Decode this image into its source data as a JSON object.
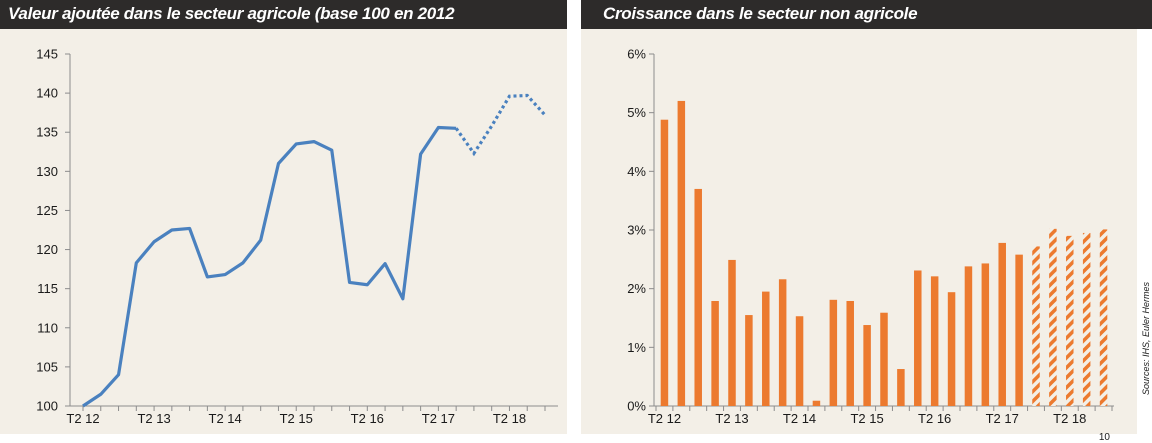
{
  "header": {
    "left_title": "Valeur ajoutée dans le secteur agricole (base 100 en 2012",
    "right_title": "Croissance dans le secteur non agricole"
  },
  "source_note": "Sources: IHS, Euler Hermes",
  "page_number": "10",
  "chart_data": [
    {
      "type": "line",
      "title": "Valeur ajoutée dans le secteur agricole (base 100 en 2012",
      "xlabel": "",
      "ylabel": "",
      "ylim": [
        100,
        145
      ],
      "yticks": [
        100,
        105,
        110,
        115,
        120,
        125,
        130,
        135,
        140,
        145
      ],
      "tick_labels": [
        "T2 12",
        "T2 13",
        "T2 14",
        "T2 15",
        "T2 16",
        "T2 17",
        "T2 18"
      ],
      "tick_positions": [
        0,
        4,
        8,
        12,
        16,
        20,
        24
      ],
      "grid": false,
      "color": "#4a81bf",
      "values": [
        100,
        101.5,
        104,
        118.3,
        121,
        122.5,
        122.7,
        116.5,
        116.8,
        118.3,
        121.2,
        131,
        133.5,
        133.8,
        132.7,
        115.8,
        115.5,
        118.2,
        113.7,
        132.2,
        135.6,
        135.5,
        132.3,
        135.8,
        139.6,
        139.7,
        137.2
      ],
      "forecast_from_index": 21
    },
    {
      "type": "bar",
      "title": "Croissance dans le secteur non agricole",
      "xlabel": "",
      "ylabel": "",
      "ylim": [
        0,
        6
      ],
      "yticks": [
        0,
        1,
        2,
        3,
        4,
        5,
        6
      ],
      "ytick_labels": [
        "0%",
        "1%",
        "2%",
        "3%",
        "4%",
        "5%",
        "6%"
      ],
      "tick_labels": [
        "T2 12",
        "T2 13",
        "T2 14",
        "T2 15",
        "T2 16",
        "T2 17",
        "T2 18"
      ],
      "tick_positions": [
        0,
        4,
        8,
        12,
        16,
        20,
        24
      ],
      "grid": false,
      "color": "#ec7a2f",
      "values": [
        4.88,
        5.2,
        3.7,
        1.79,
        2.49,
        1.55,
        1.95,
        2.16,
        1.53,
        0.09,
        1.81,
        1.79,
        1.38,
        1.59,
        0.63,
        2.31,
        2.21,
        1.94,
        2.38,
        2.43,
        2.78,
        2.58,
        2.72,
        3.02,
        2.9,
        2.95,
        3.01
      ],
      "forecast_from_index": 22
    }
  ]
}
